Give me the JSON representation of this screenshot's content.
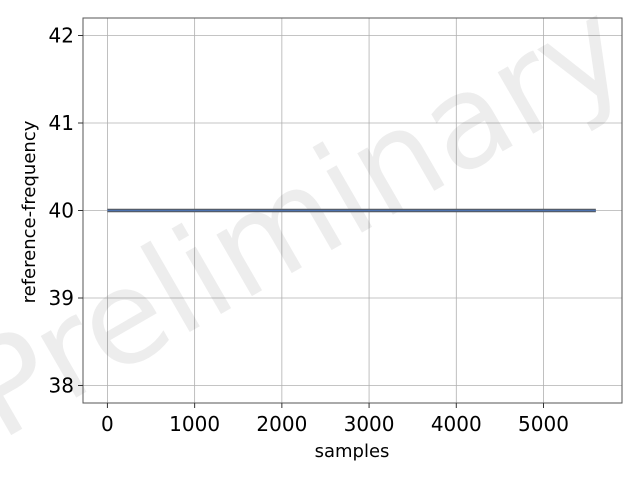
{
  "chart_data": {
    "type": "line",
    "title": "",
    "xlabel": "samples",
    "ylabel": "reference-frequency",
    "xlim": [
      -280,
      5900
    ],
    "ylim": [
      37.8,
      42.2
    ],
    "x_ticks": [
      0,
      1000,
      2000,
      3000,
      4000,
      5000
    ],
    "y_ticks": [
      38,
      39,
      40,
      41,
      42
    ],
    "grid": true,
    "legend": "none",
    "watermark": "Preliminary",
    "series": [
      {
        "color": "#4c72b0",
        "x": [
          0,
          5600
        ],
        "y": [
          40,
          40
        ]
      }
    ]
  }
}
